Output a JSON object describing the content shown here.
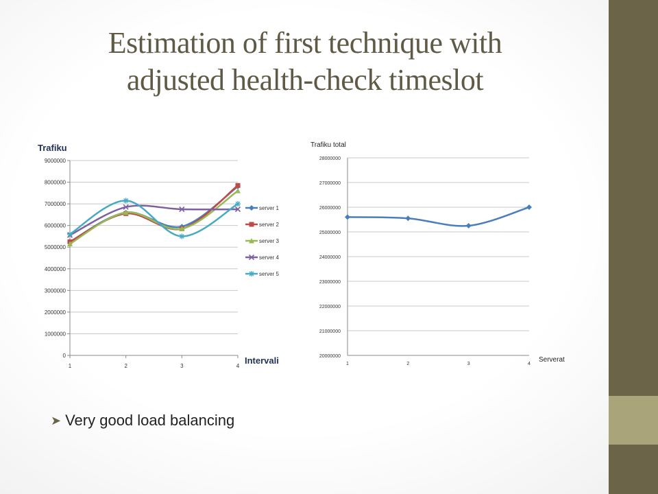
{
  "slide": {
    "title_line1": "Estimation of first technique with",
    "title_line2": "adjusted health-check timeslot",
    "bullet": "Very good load balancing",
    "colors": {
      "sidebar": "#6b6449",
      "sidebar_accent": "#a9a47a",
      "title": "#5e5a45"
    }
  },
  "chart_data": [
    {
      "type": "line",
      "ylabel": "Trafiku",
      "xlabel": "Intervali",
      "categories": [
        "1",
        "2",
        "3",
        "4"
      ],
      "ylim": [
        0,
        9000000
      ],
      "yticks": [
        "0",
        "1000000",
        "2000000",
        "3000000",
        "4000000",
        "5000000",
        "6000000",
        "7000000",
        "8000000",
        "9000000"
      ],
      "grid": true,
      "legend_position": "right",
      "series": [
        {
          "name": "server 1",
          "values": [
            5250000,
            6600000,
            5950000,
            7800000
          ],
          "color": "#4a7ebb",
          "marker": "diamond"
        },
        {
          "name": "server 2",
          "values": [
            5250000,
            6550000,
            5850000,
            7850000
          ],
          "color": "#be4b48",
          "marker": "square"
        },
        {
          "name": "server 3",
          "values": [
            5150000,
            6600000,
            5850000,
            7600000
          ],
          "color": "#98b954",
          "marker": "triangle"
        },
        {
          "name": "server 4",
          "values": [
            5550000,
            6850000,
            6750000,
            6750000
          ],
          "color": "#7d60a0",
          "marker": "x"
        },
        {
          "name": "server 5",
          "values": [
            5600000,
            7150000,
            5500000,
            7000000
          ],
          "color": "#46aac5",
          "marker": "star"
        }
      ]
    },
    {
      "type": "line",
      "title": "Trafiku total",
      "xlabel": "Serverat",
      "categories": [
        "1",
        "2",
        "3",
        "4"
      ],
      "ylim": [
        20000000,
        28000000
      ],
      "yticks": [
        "20000000",
        "21000000",
        "22000000",
        "23000000",
        "24000000",
        "25000000",
        "26000000",
        "27000000",
        "28000000"
      ],
      "grid": true,
      "series": [
        {
          "values": [
            25600000,
            25550000,
            25250000,
            26000000
          ],
          "color": "#4a7ebb",
          "marker": "diamond"
        }
      ]
    }
  ]
}
